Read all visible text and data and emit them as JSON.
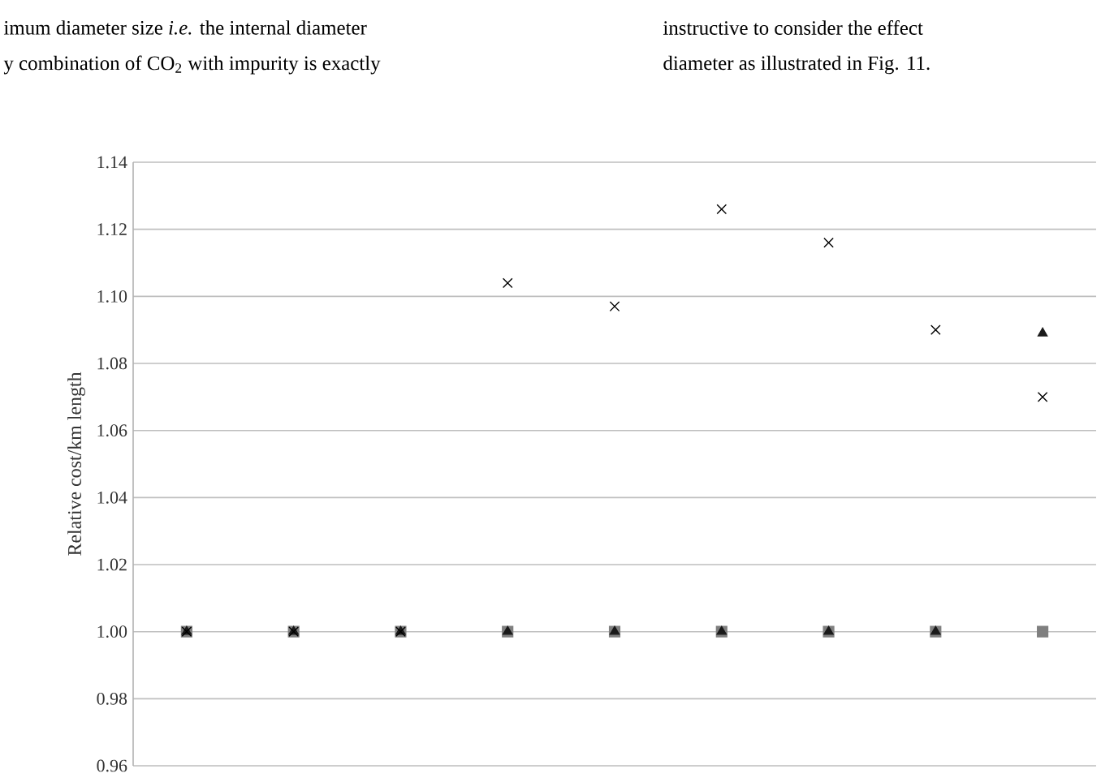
{
  "chart_data": {
    "type": "scatter",
    "ylabel": "Relative cost/km length",
    "categories": [
      null,
      null,
      null,
      null,
      null,
      null,
      null,
      null,
      null
    ],
    "series": [
      {
        "color": "#7f7f7f",
        "marker": "square",
        "values": [
          1.0,
          1.0,
          1.0,
          1.0,
          1.0,
          1.0,
          1.0,
          1.0,
          1.0
        ]
      },
      {
        "color": "#1a1a1a",
        "marker": "triangle",
        "values": [
          1.0,
          1.0,
          1.0,
          1.0,
          1.0,
          1.0,
          1.0,
          1.0,
          1.089
        ]
      },
      {
        "color": "#000000",
        "marker": "cross",
        "values": [
          1.0,
          1.0,
          1.0,
          1.104,
          1.097,
          1.126,
          1.116,
          1.09,
          1.07
        ]
      }
    ],
    "ylim": [
      0.96,
      1.14
    ],
    "yticks": [
      {
        "value": 0.96,
        "label": "0.96"
      },
      {
        "value": 0.98,
        "label": "0.98"
      },
      {
        "value": 1.0,
        "label": "1.00"
      },
      {
        "value": 1.02,
        "label": "1.02"
      },
      {
        "value": 1.04,
        "label": "1.04"
      },
      {
        "value": 1.06,
        "label": "1.06"
      },
      {
        "value": 1.08,
        "label": "1.08"
      },
      {
        "value": 1.1,
        "label": "1.10"
      },
      {
        "value": 1.12,
        "label": "1.12"
      },
      {
        "value": 1.14,
        "label": "1.14"
      }
    ],
    "grid": "y",
    "tick_labels": "y",
    "annotations": [
      "imum diameter size *i.e.* the internal diameter",
      "y combination of CO$_{2}$ with impurity is exactly",
      "instructive to consider the effect",
      "diameter as illustrated in Fig. 11."
    ]
  }
}
